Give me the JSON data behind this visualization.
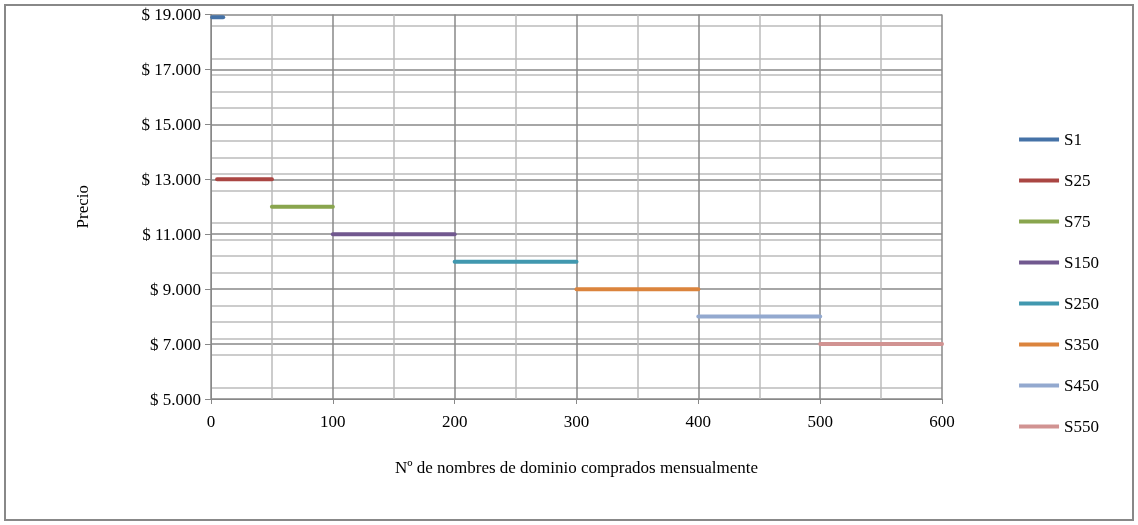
{
  "chart_data": {
    "type": "line",
    "xlabel": "Nº de nombres de dominio comprados mensualmente",
    "ylabel": "Precio",
    "xlim": [
      0,
      600
    ],
    "xticks": [
      0,
      100,
      200,
      300,
      400,
      500,
      600
    ],
    "ylim": [
      5000,
      19000
    ],
    "yticks": [
      {
        "value": 5000,
        "label": "$ 5.000"
      },
      {
        "value": 7000,
        "label": "$ 7.000"
      },
      {
        "value": 9000,
        "label": "$ 9.000"
      },
      {
        "value": 11000,
        "label": "$ 11.000"
      },
      {
        "value": 13000,
        "label": "$ 13.000"
      },
      {
        "value": 15000,
        "label": "$ 15.000"
      },
      {
        "value": 17000,
        "label": "$ 17.000"
      },
      {
        "value": 19000,
        "label": "$ 19.000"
      }
    ],
    "grid": true,
    "legend": "right",
    "marker": "none",
    "line_style": "solid",
    "series": [
      {
        "name": "S1",
        "color": "#4572a7",
        "x": [
          1,
          10
        ],
        "values": [
          18900,
          18900
        ]
      },
      {
        "name": "S25",
        "color": "#aa4643",
        "x": [
          5,
          50
        ],
        "values": [
          13000,
          13000
        ]
      },
      {
        "name": "S75",
        "color": "#89a54e",
        "x": [
          50,
          100
        ],
        "values": [
          12000,
          12000
        ]
      },
      {
        "name": "S150",
        "color": "#71588f",
        "x": [
          100,
          200
        ],
        "values": [
          11000,
          11000
        ]
      },
      {
        "name": "S250",
        "color": "#4198af",
        "x": [
          200,
          300
        ],
        "values": [
          10000,
          10000
        ]
      },
      {
        "name": "S350",
        "color": "#db843d",
        "x": [
          300,
          400
        ],
        "values": [
          9000,
          9000
        ]
      },
      {
        "name": "S450",
        "color": "#93a9cf",
        "x": [
          400,
          500
        ],
        "values": [
          8000,
          8000
        ]
      },
      {
        "name": "S550",
        "color": "#d19392",
        "x": [
          500,
          600
        ],
        "values": [
          7000,
          7000
        ]
      }
    ]
  }
}
